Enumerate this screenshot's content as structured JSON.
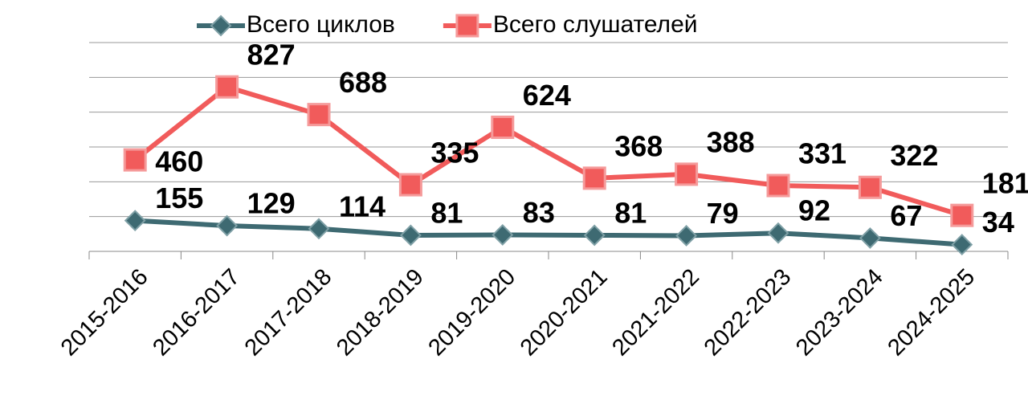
{
  "chart_data": {
    "type": "line",
    "categories": [
      "2015-2016",
      "2016-2017",
      "2017-2018",
      "2018-2019",
      "2019-2020",
      "2020-2021",
      "2021-2022",
      "2022-2023",
      "2023-2024",
      "2024-2025"
    ],
    "series": [
      {
        "name": "Всего циклов",
        "color": "#3e6a72",
        "marker": "diamond",
        "values": [
          155,
          129,
          114,
          81,
          83,
          81,
          79,
          92,
          67,
          34
        ]
      },
      {
        "name": "Всего слушателей",
        "color": "#f15b5b",
        "marker": "square",
        "values": [
          460,
          827,
          688,
          335,
          624,
          368,
          388,
          331,
          322,
          181
        ]
      }
    ],
    "ylim": [
      0,
      1050
    ],
    "yticks": [
      0,
      175,
      350,
      525,
      700,
      875,
      1050
    ],
    "grid": true,
    "legend": "top"
  }
}
